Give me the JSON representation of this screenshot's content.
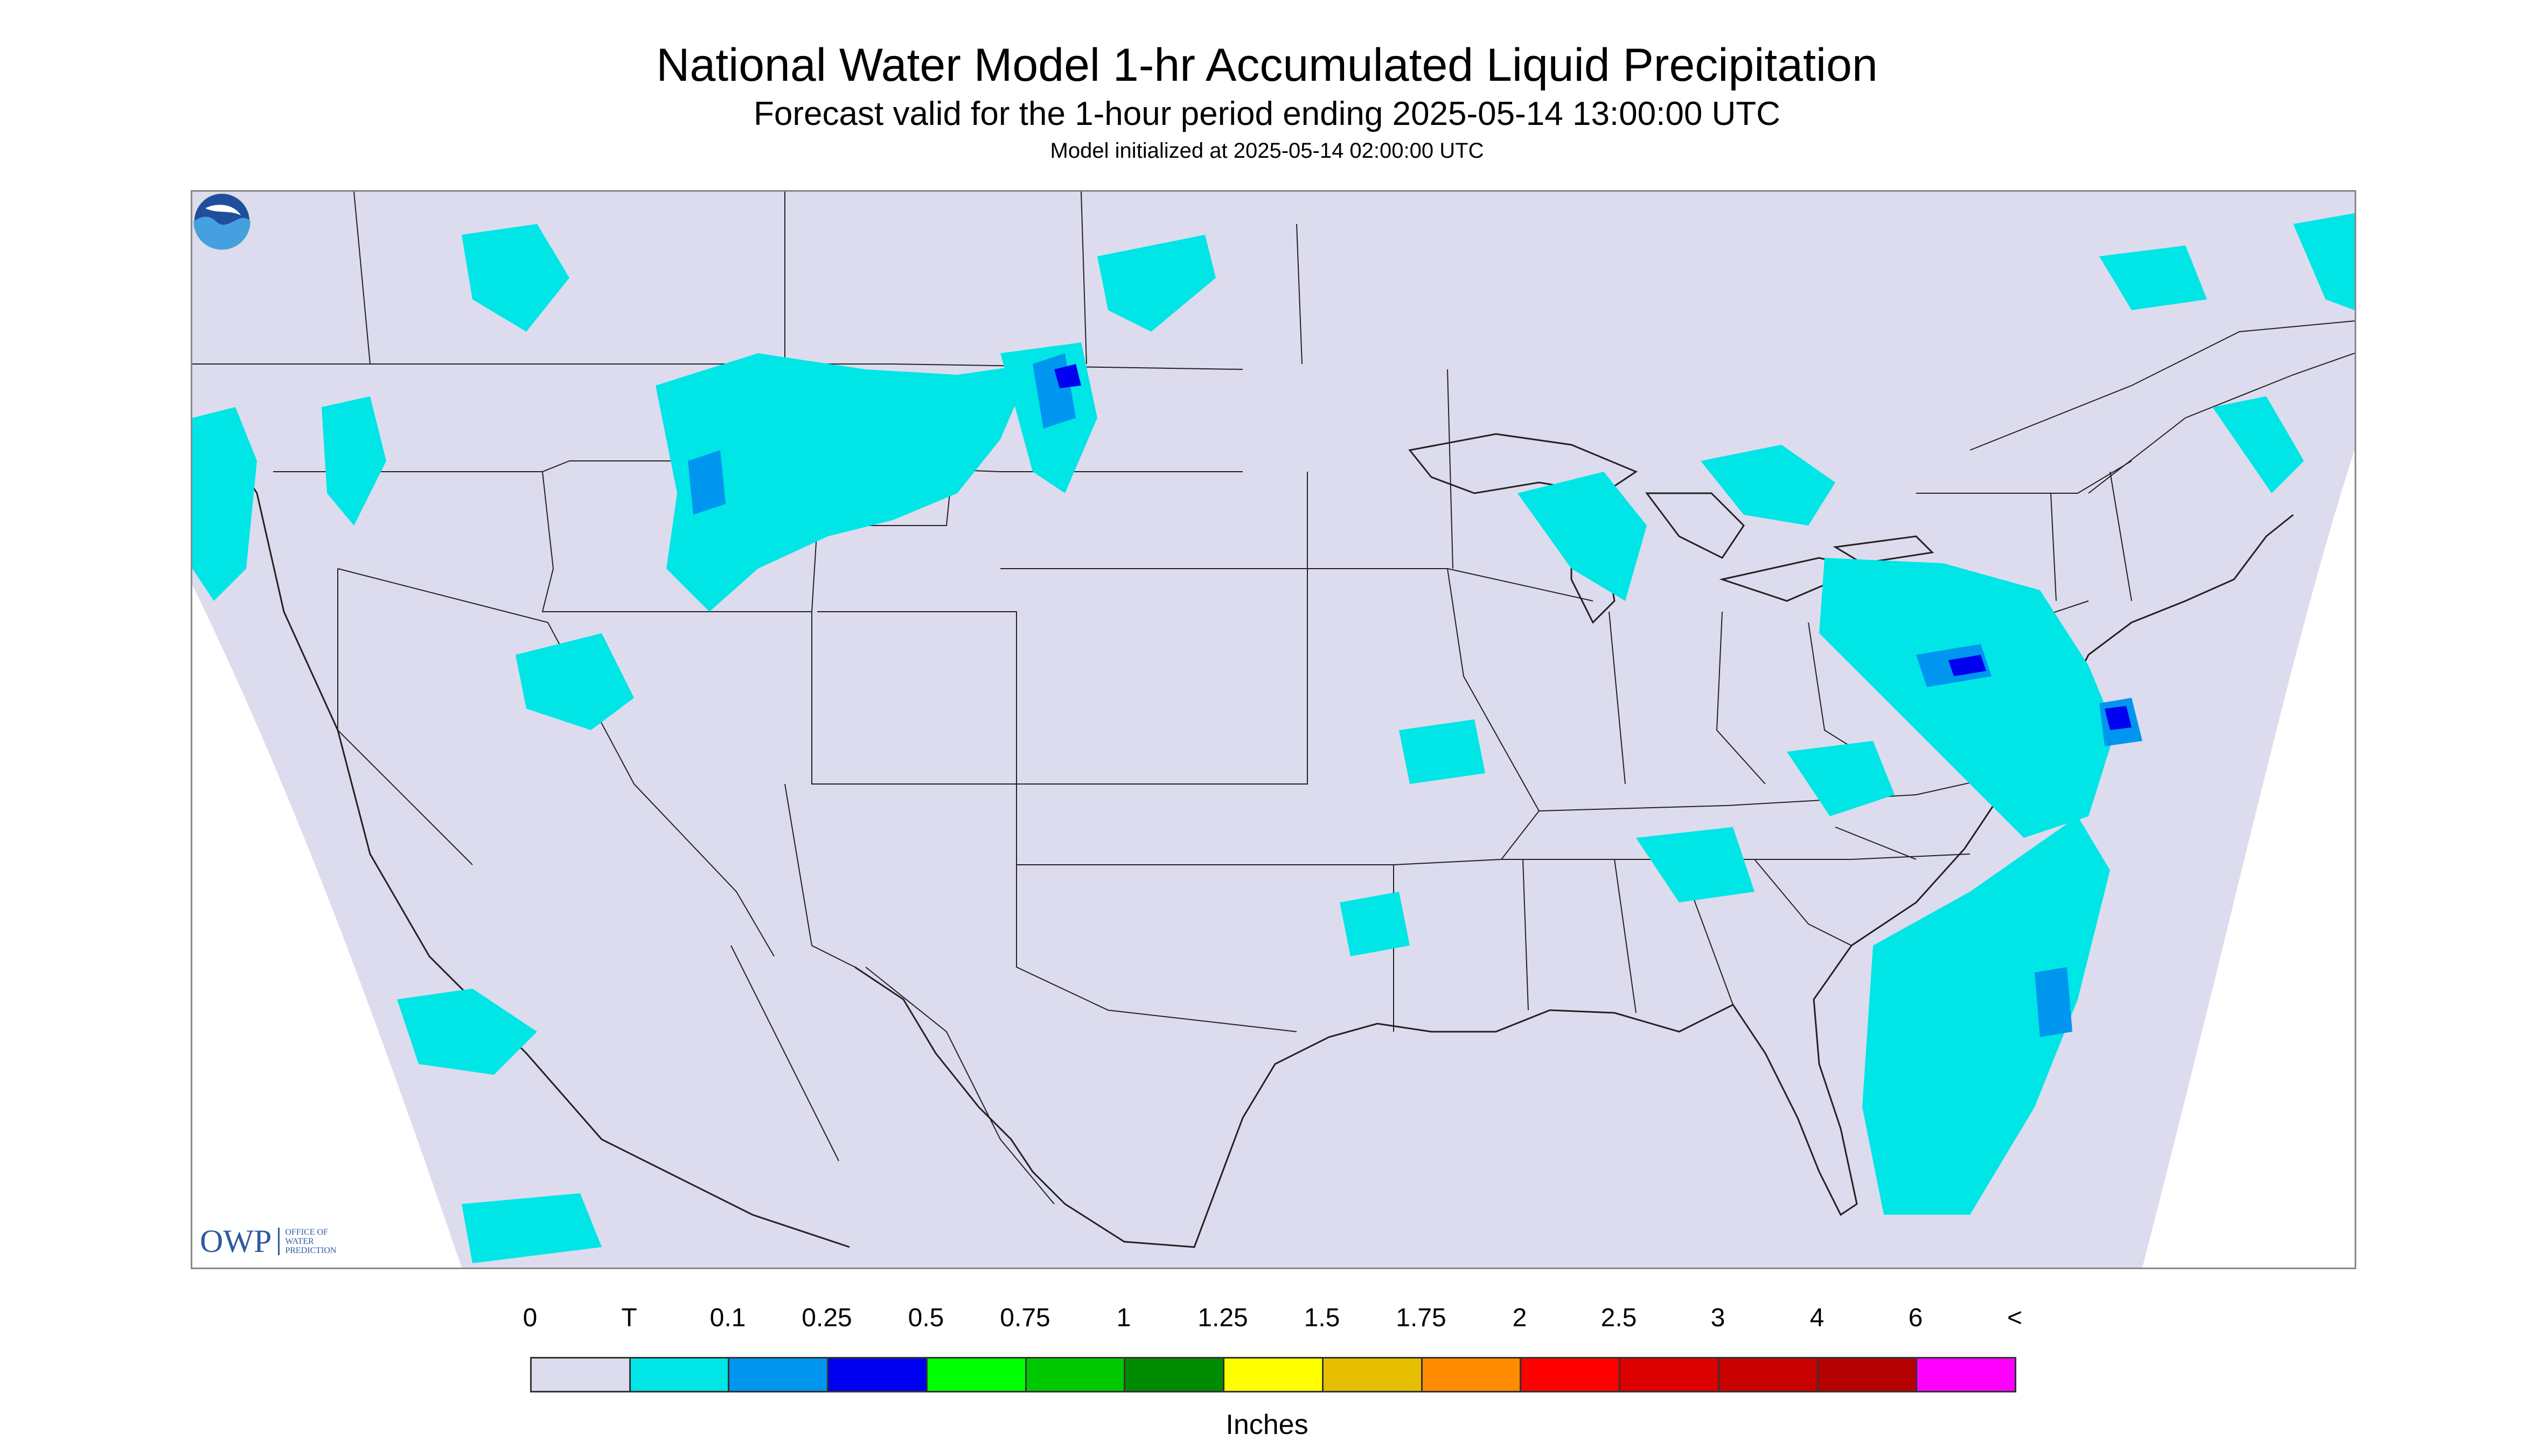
{
  "header": {
    "title": "National Water Model 1-hr Accumulated Liquid Precipitation",
    "subtitle": "Forecast valid for the 1-hour period ending 2025-05-14 13:00:00 UTC",
    "note": "Model initialized at 2025-05-14 02:00:00 UTC"
  },
  "map": {
    "background_color": "#dcdcee",
    "boundary_color": "#222222",
    "precip_color_trace": "#00e5e5",
    "precip_color_01": "#0096f0",
    "precip_color_025": "#0000f0"
  },
  "branding": {
    "owp_letters": "OWP",
    "owp_subtitle_lines": [
      "OFFICE OF",
      "WATER",
      "PREDICTION"
    ],
    "noaa_logo": "noaa-logo-icon"
  },
  "legend": {
    "labels": [
      "0",
      "T",
      "0.1",
      "0.25",
      "0.5",
      "0.75",
      "1",
      "1.25",
      "1.5",
      "1.75",
      "2",
      "2.5",
      "3",
      "4",
      "6",
      "<"
    ],
    "colors": [
      "#dcdcee",
      "#00e5e5",
      "#0096f0",
      "#0000f0",
      "#00ff00",
      "#00c800",
      "#008c00",
      "#ffff00",
      "#e6be00",
      "#ff8c00",
      "#ff0000",
      "#dc0000",
      "#c80000",
      "#b40000",
      "#ff00ff",
      "#9650c8"
    ],
    "units": "Inches"
  }
}
